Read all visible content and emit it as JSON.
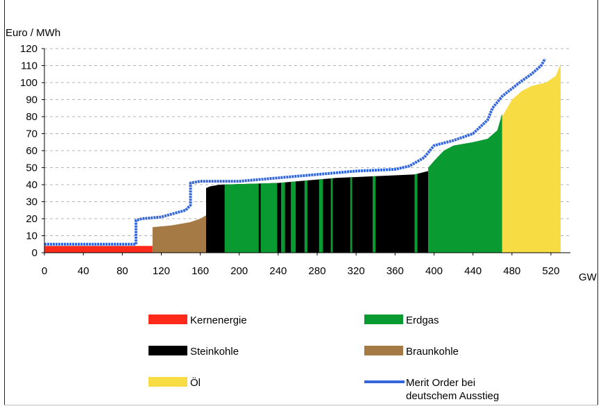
{
  "chart_data": {
    "type": "area",
    "title": "",
    "ylabel": "Euro / MWh",
    "xlabel": "GW",
    "xlim": [
      0,
      540
    ],
    "ylim": [
      0,
      120
    ],
    "x_ticks": [
      0,
      40,
      80,
      120,
      160,
      200,
      240,
      280,
      320,
      360,
      400,
      440,
      480,
      520
    ],
    "y_ticks": [
      0,
      10,
      20,
      30,
      40,
      50,
      60,
      70,
      80,
      90,
      100,
      110,
      120
    ],
    "grid": "horizontal dashed",
    "legend_position": "bottom",
    "colors": {
      "Kernenergie": "#ff2a1a",
      "Braunkohle": "#a57a45",
      "Steinkohle": "#000000",
      "Erdgas": "#0a9a32",
      "Öl": "#f7dc44",
      "Merit Order bei deutschem Ausstieg": "#3366dd"
    },
    "series": [
      {
        "name": "Kernenergie",
        "points": [
          [
            0,
            4
          ],
          [
            111,
            4
          ]
        ]
      },
      {
        "name": "Braunkohle",
        "points": [
          [
            111,
            15
          ],
          [
            130,
            16
          ],
          [
            150,
            18
          ],
          [
            160,
            20
          ],
          [
            166,
            22
          ]
        ]
      },
      {
        "name": "Steinkohle",
        "points": [
          [
            166,
            38
          ],
          [
            170,
            39
          ],
          [
            180,
            40
          ],
          [
            240,
            41
          ],
          [
            300,
            44
          ],
          [
            340,
            45
          ],
          [
            380,
            46
          ],
          [
            394,
            48
          ]
        ]
      },
      {
        "name": "Erdgas",
        "points": [
          [
            394,
            50
          ],
          [
            400,
            54
          ],
          [
            410,
            60
          ],
          [
            420,
            63
          ],
          [
            440,
            65
          ],
          [
            455,
            67
          ],
          [
            465,
            72
          ],
          [
            470,
            82
          ]
        ]
      },
      {
        "name": "Öl",
        "points": [
          [
            470,
            80
          ],
          [
            480,
            90
          ],
          [
            490,
            95
          ],
          [
            500,
            98
          ],
          [
            515,
            100
          ],
          [
            525,
            104
          ],
          [
            530,
            111
          ]
        ]
      },
      {
        "name": "Merit Order bei deutschem Ausstieg",
        "points": [
          [
            0,
            5
          ],
          [
            94,
            5
          ],
          [
            94,
            19
          ],
          [
            100,
            20
          ],
          [
            120,
            21
          ],
          [
            145,
            25
          ],
          [
            150,
            28
          ],
          [
            150,
            41
          ],
          [
            160,
            42
          ],
          [
            200,
            42
          ],
          [
            240,
            44
          ],
          [
            280,
            46
          ],
          [
            320,
            48
          ],
          [
            360,
            49
          ],
          [
            375,
            51
          ],
          [
            390,
            56
          ],
          [
            400,
            63
          ],
          [
            420,
            66
          ],
          [
            440,
            70
          ],
          [
            455,
            78
          ],
          [
            460,
            85
          ],
          [
            470,
            92
          ],
          [
            490,
            101
          ],
          [
            500,
            105
          ],
          [
            510,
            110
          ],
          [
            514,
            114
          ]
        ]
      }
    ],
    "gas_stripes": [
      [
        185,
        220
      ],
      [
        222,
        239
      ],
      [
        243,
        247
      ],
      [
        253,
        258
      ],
      [
        267,
        270
      ],
      [
        282,
        286
      ],
      [
        294,
        296
      ],
      [
        314,
        316
      ],
      [
        337,
        340
      ],
      [
        380,
        383
      ]
    ],
    "legend": [
      {
        "key": "Kernenergie",
        "label": "Kernenergie",
        "style": "bar"
      },
      {
        "key": "Erdgas",
        "label": "Erdgas",
        "style": "bar"
      },
      {
        "key": "Steinkohle",
        "label": "Steinkohle",
        "style": "bar"
      },
      {
        "key": "Braunkohle",
        "label": "Braunkohle",
        "style": "bar"
      },
      {
        "key": "Öl",
        "label": "Öl",
        "style": "bar"
      },
      {
        "key": "Merit Order bei deutschem Ausstieg",
        "label_lines": [
          "Merit Order bei",
          "deutschem Ausstieg"
        ],
        "style": "line"
      }
    ]
  }
}
